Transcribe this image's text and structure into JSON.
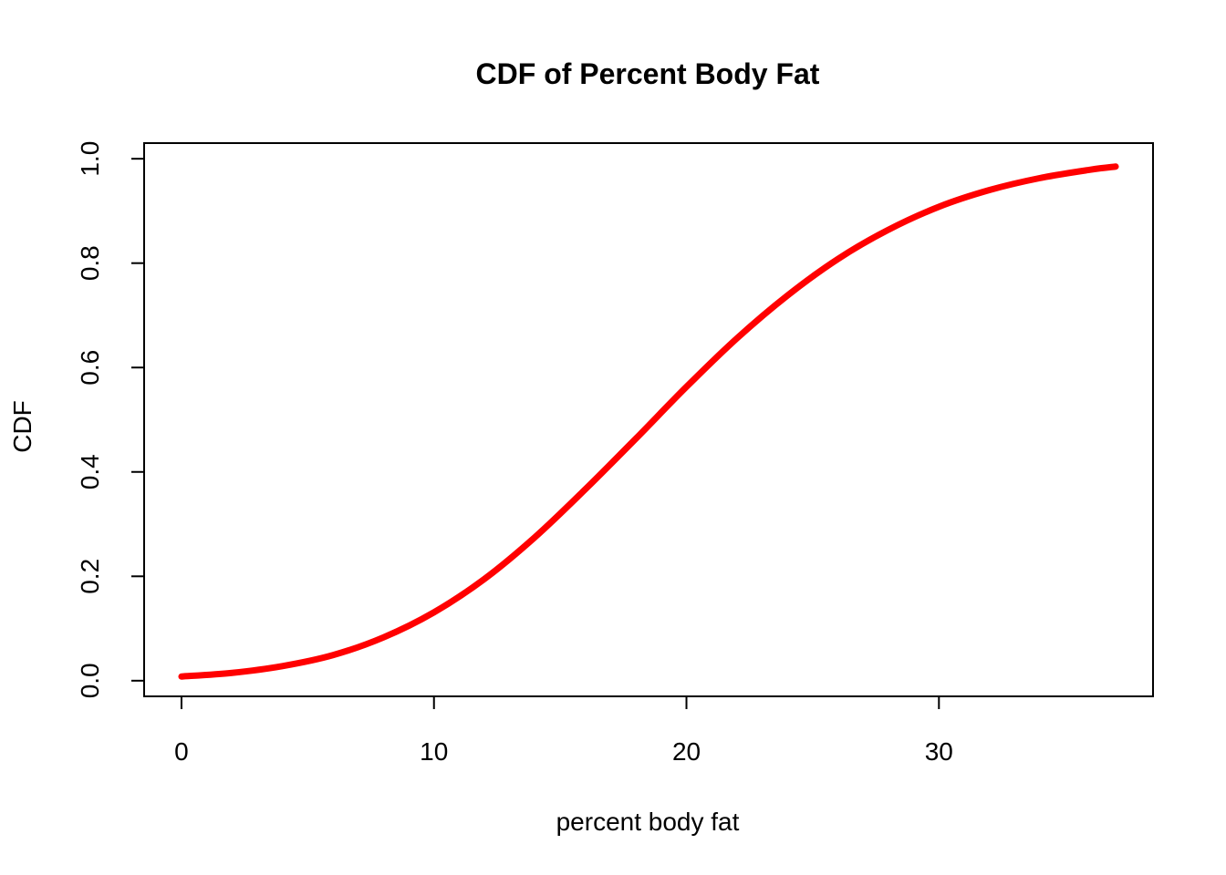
{
  "chart_data": {
    "type": "line",
    "title": "CDF of Percent Body Fat",
    "xlabel": "percent body fat",
    "ylabel": "CDF",
    "xlim": [
      -1.48,
      38.48
    ],
    "ylim": [
      -0.03,
      1.03
    ],
    "x_ticks": [
      0,
      10,
      20,
      30
    ],
    "x_tick_labels": [
      "0",
      "10",
      "20",
      "30"
    ],
    "y_ticks": [
      0.0,
      0.2,
      0.4,
      0.6,
      0.8,
      1.0
    ],
    "y_tick_labels": [
      "0.0",
      "0.2",
      "0.4",
      "0.6",
      "0.8",
      "1.0"
    ],
    "grid": false,
    "legend": "none",
    "series": [
      {
        "color": "#ff0000",
        "x": [
          0,
          2,
          4,
          6,
          8,
          10,
          12,
          14,
          16,
          18,
          20,
          22,
          24,
          26,
          28,
          30,
          32,
          34,
          36,
          37
        ],
        "values": [
          0.008,
          0.015,
          0.028,
          0.049,
          0.083,
          0.131,
          0.195,
          0.275,
          0.367,
          0.464,
          0.563,
          0.656,
          0.738,
          0.808,
          0.864,
          0.908,
          0.94,
          0.963,
          0.979,
          0.985
        ]
      }
    ]
  }
}
